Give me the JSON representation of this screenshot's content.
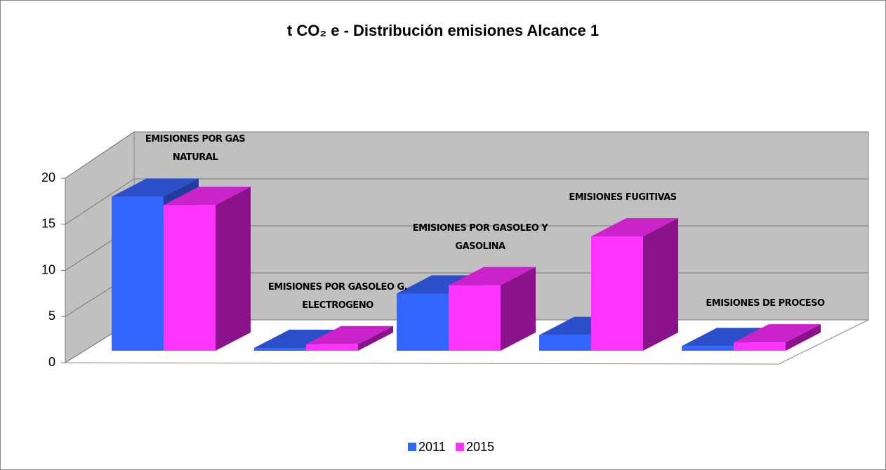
{
  "chart_data": {
    "type": "bar3d",
    "title": "t CO₂ e - Distribución emisiones Alcance 1",
    "categories": [
      "EMISIONES POR GAS NATURAL",
      "EMISIONES POR GASOLEO G. ELECTROGENO",
      "EMISIONES POR GASOLEO Y GASOLINA",
      "EMISIONES FUGITIVAS",
      "EMISIONES DE PROCESO"
    ],
    "series": [
      {
        "name": "2011",
        "color": "#3366ff",
        "values": [
          16.7,
          0.3,
          6.2,
          1.7,
          0.5
        ]
      },
      {
        "name": "2015",
        "color": "#ff33ff",
        "values": [
          15.8,
          0.7,
          7.1,
          12.4,
          0.9
        ]
      }
    ],
    "ylim": [
      0,
      20
    ],
    "yticks": [
      0,
      5,
      10,
      15,
      20
    ],
    "grid": true
  }
}
